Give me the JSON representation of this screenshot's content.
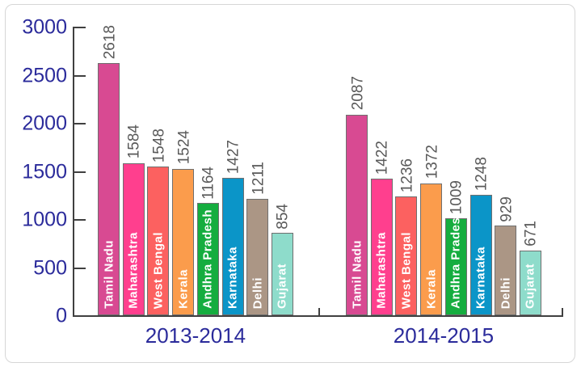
{
  "chart_data": {
    "type": "bar",
    "title": "",
    "categories": [
      "Tamil Nadu",
      "Maharashtra",
      "West Bengal",
      "Kerala",
      "Andhra Pradesh",
      "Karnataka",
      "Delhi",
      "Gujarat"
    ],
    "groups": [
      {
        "label": "2013-2014",
        "values": [
          2618,
          1584,
          1548,
          1524,
          1164,
          1427,
          1211,
          854
        ]
      },
      {
        "label": "2014-2015",
        "values": [
          2087,
          1422,
          1236,
          1372,
          1009,
          1248,
          929,
          671
        ]
      }
    ],
    "xlabel": "",
    "ylabel": "",
    "ylim": [
      0,
      3000
    ],
    "yticks": [
      0,
      500,
      1000,
      1500,
      2000,
      2500,
      3000
    ],
    "grid": false,
    "legend": "none",
    "value_labels_shown": true,
    "bar_colors": [
      "#d84a92",
      "#ff3f8e",
      "#fc6160",
      "#fb9c4c",
      "#15ad3f",
      "#0b95c8",
      "#ab9685",
      "#8edccb"
    ],
    "colors": {
      "axis": "#404040",
      "axis_tick_labels": "#2b2b9b",
      "group_labels": "#2b2b9b",
      "value_labels": "#595959",
      "bar_text": "#ffffff",
      "bar_border": "#6f6f6f",
      "card_border": "#d6d6d6",
      "background": "#ffffff"
    }
  }
}
